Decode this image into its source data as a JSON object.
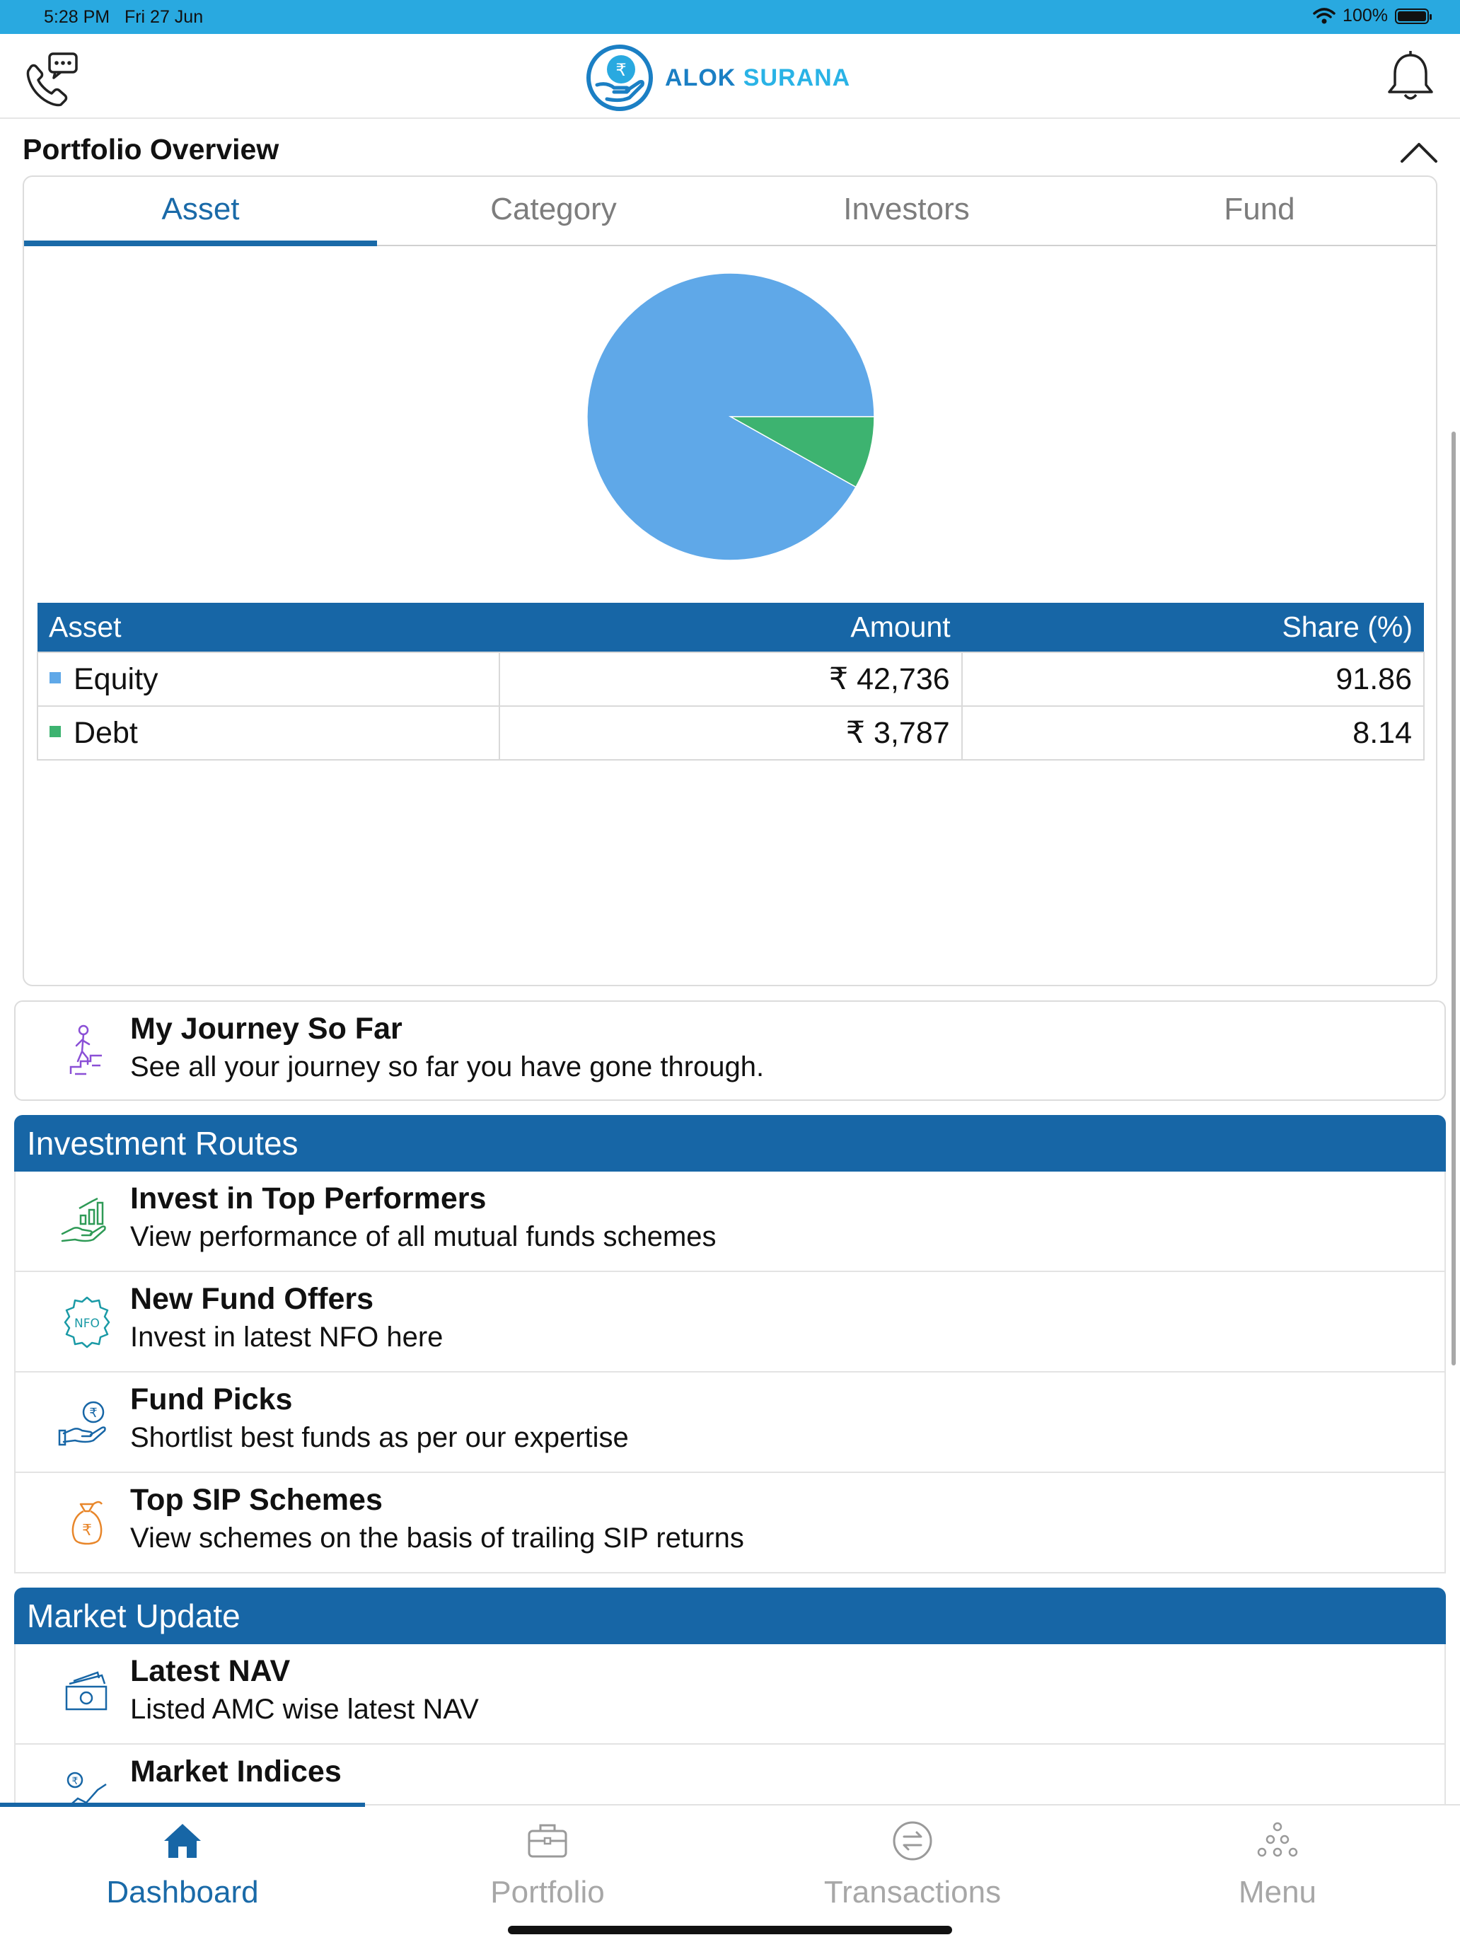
{
  "status_bar": {
    "time": "5:28 PM",
    "date": "Fri 27 Jun",
    "battery": "100%"
  },
  "header": {
    "brand_part1": "ALOK",
    "brand_part2": "SURANA",
    "left_icon": "phone-chat-icon",
    "right_icon": "bell-icon"
  },
  "portfolio": {
    "title": "Portfolio Overview",
    "tabs": [
      "Asset",
      "Category",
      "Investors",
      "Fund"
    ],
    "active_tab": "Asset",
    "table": {
      "headers": [
        "Asset",
        "Amount",
        "Share (%)"
      ],
      "rows": [
        {
          "asset": "Equity",
          "amount": "₹ 42,736",
          "share": "91.86",
          "color": "#5fa8e8"
        },
        {
          "asset": "Debt",
          "amount": "₹ 3,787",
          "share": "8.14",
          "color": "#3db370"
        }
      ]
    }
  },
  "chart_data": {
    "type": "pie",
    "categories": [
      "Equity",
      "Debt"
    ],
    "values": [
      91.86,
      8.14
    ],
    "colors": [
      "#5fa8e8",
      "#3db370"
    ],
    "title": ""
  },
  "journey": {
    "title": "My Journey So Far",
    "subtitle": "See all your journey so far you have gone through.",
    "icon": "climbing-person-icon"
  },
  "investment_routes": {
    "title": "Investment Routes",
    "items": [
      {
        "title": "Invest in Top Performers",
        "subtitle": "View performance of all mutual funds schemes",
        "icon": "growth-hand-icon"
      },
      {
        "title": "New Fund Offers",
        "subtitle": "Invest in latest NFO here",
        "icon": "nfo-badge-icon"
      },
      {
        "title": "Fund Picks",
        "subtitle": "Shortlist best funds as per our expertise",
        "icon": "rupee-hand-icon"
      },
      {
        "title": "Top SIP Schemes",
        "subtitle": "View schemes on the basis of trailing SIP returns",
        "icon": "money-bag-icon"
      }
    ]
  },
  "market_update": {
    "title": "Market Update",
    "items": [
      {
        "title": "Latest NAV",
        "subtitle": "Listed AMC wise latest NAV",
        "icon": "cash-stack-icon"
      },
      {
        "title": "Market Indices",
        "subtitle": "",
        "icon": "rupee-chart-icon"
      }
    ]
  },
  "bottom_nav": {
    "items": [
      "Dashboard",
      "Portfolio",
      "Transactions",
      "Menu"
    ],
    "active": "Dashboard"
  }
}
